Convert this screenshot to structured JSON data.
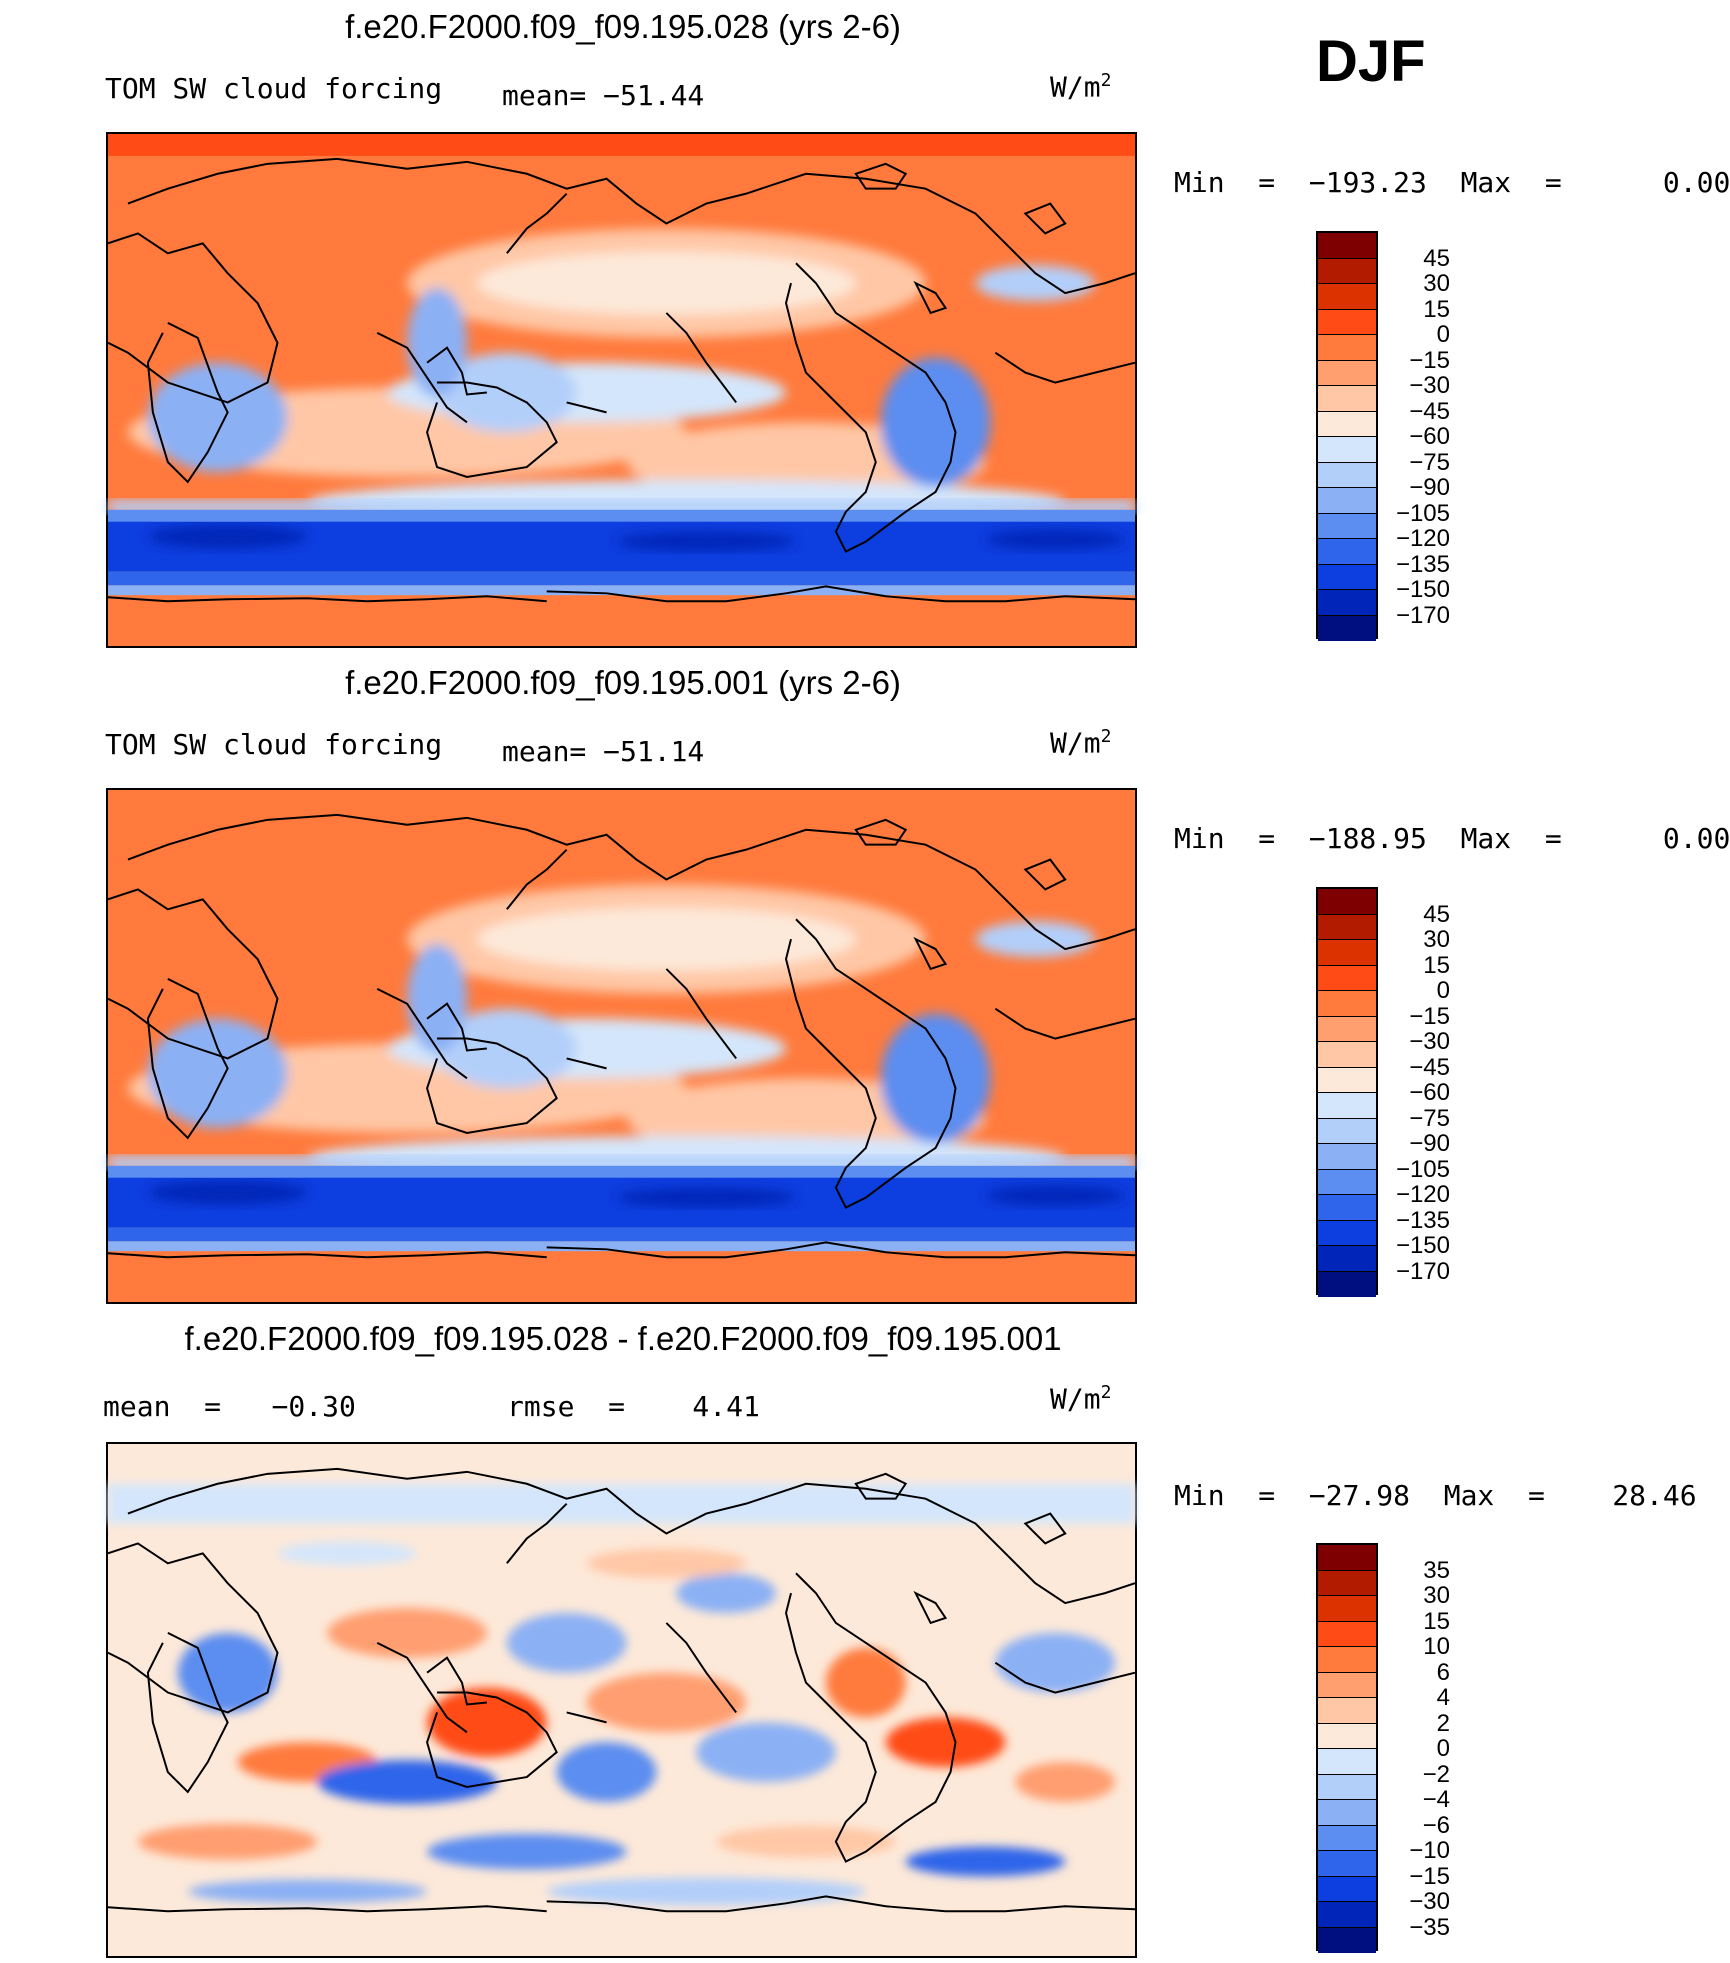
{
  "season": "DJF",
  "panels": [
    {
      "title": "f.e20.F2000.f09_f09.195.028 (yrs 2-6)",
      "variable": "TOM SW cloud forcing",
      "stat1": "mean= −51.44",
      "stat2": "",
      "units_base": "W/m",
      "units_exp": "2",
      "minmax": "Min  =  −193.23  Max  =      0.00",
      "colorbar": {
        "labels": [
          "45",
          "30",
          "15",
          "0",
          "−15",
          "−30",
          "−45",
          "−60",
          "−75",
          "−90",
          "−105",
          "−120",
          "−135",
          "−150",
          "−170"
        ],
        "colors": [
          "#7f0000",
          "#b31b00",
          "#db3200",
          "#ff4c16",
          "#ff7a3c",
          "#ff9e6f",
          "#ffc7a6",
          "#fde9d9",
          "#d4e6fb",
          "#b2cffa",
          "#8bb0f4",
          "#5c8df0",
          "#2f65ea",
          "#0d3ee0",
          "#0025b8",
          "#000f80"
        ]
      }
    },
    {
      "title": "f.e20.F2000.f09_f09.195.001 (yrs 2-6)",
      "variable": "TOM SW cloud forcing",
      "stat1": "mean= −51.14",
      "stat2": "",
      "units_base": "W/m",
      "units_exp": "2",
      "minmax": "Min  =  −188.95  Max  =      0.00",
      "colorbar": {
        "labels": [
          "45",
          "30",
          "15",
          "0",
          "−15",
          "−30",
          "−45",
          "−60",
          "−75",
          "−90",
          "−105",
          "−120",
          "−135",
          "−150",
          "−170"
        ],
        "colors": [
          "#7f0000",
          "#b31b00",
          "#db3200",
          "#ff4c16",
          "#ff7a3c",
          "#ff9e6f",
          "#ffc7a6",
          "#fde9d9",
          "#d4e6fb",
          "#b2cffa",
          "#8bb0f4",
          "#5c8df0",
          "#2f65ea",
          "#0d3ee0",
          "#0025b8",
          "#000f80"
        ]
      }
    },
    {
      "title": "f.e20.F2000.f09_f09.195.028 - f.e20.F2000.f09_f09.195.001",
      "variable": "mean  =   −0.30",
      "stat1": "rmse  =    4.41",
      "stat2": "",
      "units_base": "W/m",
      "units_exp": "2",
      "minmax": "Min  =  −27.98  Max  =    28.46",
      "colorbar": {
        "labels": [
          "35",
          "30",
          "15",
          "10",
          "6",
          "4",
          "2",
          "0",
          "−2",
          "−4",
          "−6",
          "−10",
          "−15",
          "−30",
          "−35"
        ],
        "colors": [
          "#7f0000",
          "#b31b00",
          "#db3200",
          "#ff4c16",
          "#ff7a3c",
          "#ff9e6f",
          "#ffc7a6",
          "#fde9d9",
          "#d4e6fb",
          "#b2cffa",
          "#8bb0f4",
          "#5c8df0",
          "#2f65ea",
          "#0d3ee0",
          "#0025b8",
          "#000f80"
        ]
      }
    }
  ]
}
